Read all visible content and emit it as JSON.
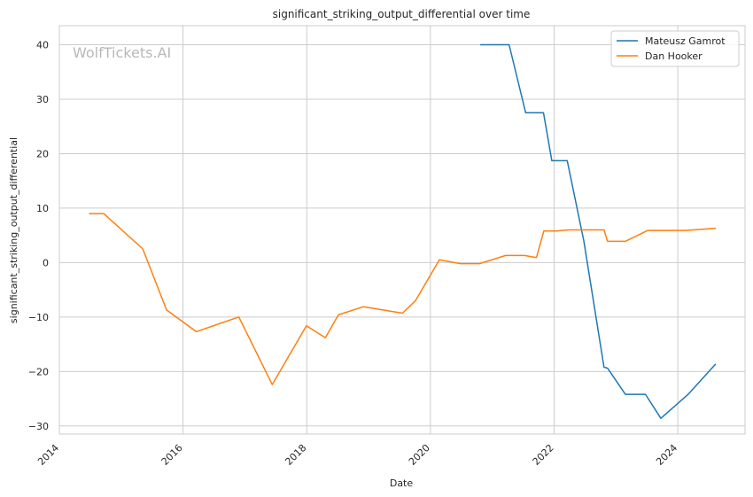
{
  "chart_data": {
    "type": "line",
    "title": "significant_striking_output_differential over time",
    "xlabel": "Date",
    "ylabel": "significant_striking_output_differential",
    "watermark": "WolfTickets.AI",
    "x_ticks": [
      "2014",
      "2016",
      "2018",
      "2020",
      "2022",
      "2024"
    ],
    "y_ticks": [
      "40",
      "30",
      "20",
      "10",
      "0",
      "−10",
      "−20",
      "−30"
    ],
    "xlim": [
      "2014-01-01",
      "2025-02-01"
    ],
    "ylim": [
      -31.5,
      43.5
    ],
    "grid": true,
    "legend_position": "top-right",
    "series": [
      {
        "name": "Mateusz Gamrot",
        "color": "#1f77b4",
        "points": [
          [
            "2020-10-24",
            40.0
          ],
          [
            "2021-04-10",
            40.0
          ],
          [
            "2021-07-17",
            27.5
          ],
          [
            "2021-10-30",
            27.5
          ],
          [
            "2021-12-18",
            18.7
          ],
          [
            "2022-03-19",
            18.7
          ],
          [
            "2022-06-25",
            4.0
          ],
          [
            "2022-10-22",
            -19.2
          ],
          [
            "2022-11-12",
            -19.4
          ],
          [
            "2023-02-25",
            -24.2
          ],
          [
            "2023-06-24",
            -24.2
          ],
          [
            "2023-09-23",
            -28.6
          ],
          [
            "2024-03-02",
            -24.2
          ],
          [
            "2024-08-10",
            -18.7
          ]
        ]
      },
      {
        "name": "Dan Hooker",
        "color": "#ff7f0e",
        "points": [
          [
            "2014-06-28",
            9.0
          ],
          [
            "2014-09-20",
            9.0
          ],
          [
            "2015-05-09",
            2.5
          ],
          [
            "2015-09-26",
            -8.7
          ],
          [
            "2016-03-20",
            -12.7
          ],
          [
            "2016-11-26",
            -10.0
          ],
          [
            "2017-06-11",
            -22.4
          ],
          [
            "2017-12-30",
            -11.6
          ],
          [
            "2018-04-21",
            -13.8
          ],
          [
            "2018-07-07",
            -9.6
          ],
          [
            "2018-12-02",
            -8.1
          ],
          [
            "2019-07-20",
            -9.3
          ],
          [
            "2019-10-05",
            -7.0
          ],
          [
            "2020-02-23",
            0.5
          ],
          [
            "2020-06-27",
            -0.2
          ],
          [
            "2020-10-17",
            -0.2
          ],
          [
            "2021-03-20",
            1.3
          ],
          [
            "2021-07-10",
            1.3
          ],
          [
            "2021-09-18",
            0.9
          ],
          [
            "2021-11-01",
            5.8
          ],
          [
            "2022-01-15",
            5.8
          ],
          [
            "2022-03-26",
            6.0
          ],
          [
            "2022-10-22",
            6.0
          ],
          [
            "2022-11-12",
            3.9
          ],
          [
            "2023-02-25",
            3.9
          ],
          [
            "2023-07-08",
            5.9
          ],
          [
            "2024-02-17",
            5.9
          ],
          [
            "2024-08-10",
            6.3
          ]
        ]
      }
    ]
  }
}
